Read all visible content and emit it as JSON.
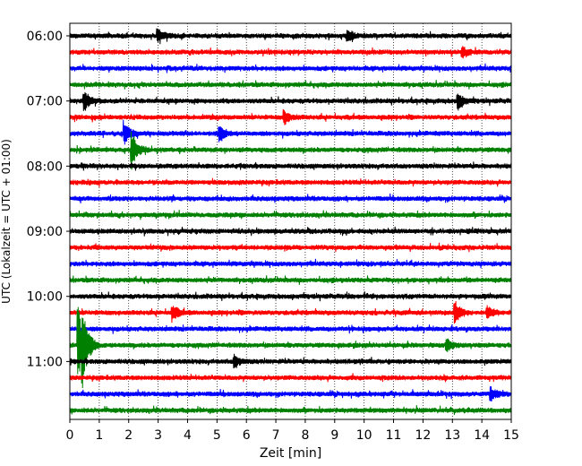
{
  "chart_data": {
    "type": "line",
    "description_kind": "helicorder",
    "xlabel": "Zeit  [min]",
    "ylabel": "UTC (Lokalzeit = UTC + 01:00)",
    "xlim": [
      0,
      15
    ],
    "x_ticks": [
      "0",
      "1",
      "2",
      "3",
      "4",
      "5",
      "6",
      "7",
      "8",
      "9",
      "10",
      "11",
      "12",
      "13",
      "14",
      "15"
    ],
    "y_tick_labels": [
      "06:00",
      "07:00",
      "08:00",
      "09:00",
      "10:00",
      "11:00"
    ],
    "grid": "vertical-dotted",
    "trace_colors": [
      "#000000",
      "#ff0000",
      "#0000ff",
      "#008000"
    ],
    "rows_per_hour": 4,
    "row_count": 24,
    "events": [
      {
        "row": 0,
        "minute": 3.0,
        "amp": 0.35
      },
      {
        "row": 0,
        "minute": 9.45,
        "amp": 0.35
      },
      {
        "row": 1,
        "minute": 13.35,
        "amp": 0.3
      },
      {
        "row": 4,
        "minute": 0.5,
        "amp": 0.55
      },
      {
        "row": 4,
        "minute": 13.2,
        "amp": 0.45
      },
      {
        "row": 5,
        "minute": 7.3,
        "amp": 0.4
      },
      {
        "row": 6,
        "minute": 1.85,
        "amp": 0.6
      },
      {
        "row": 6,
        "minute": 5.1,
        "amp": 0.45
      },
      {
        "row": 7,
        "minute": 2.1,
        "amp": 1.1
      },
      {
        "row": 17,
        "minute": 3.5,
        "amp": 0.45
      },
      {
        "row": 17,
        "minute": 13.1,
        "amp": 0.6
      },
      {
        "row": 17,
        "minute": 14.2,
        "amp": 0.3
      },
      {
        "row": 19,
        "minute": 0.3,
        "amp": 2.2
      },
      {
        "row": 19,
        "minute": 0.45,
        "amp": 1.6
      },
      {
        "row": 19,
        "minute": 12.8,
        "amp": 0.35
      },
      {
        "row": 20,
        "minute": 5.6,
        "amp": 0.35
      },
      {
        "row": 22,
        "minute": 14.3,
        "amp": 0.4
      }
    ]
  }
}
